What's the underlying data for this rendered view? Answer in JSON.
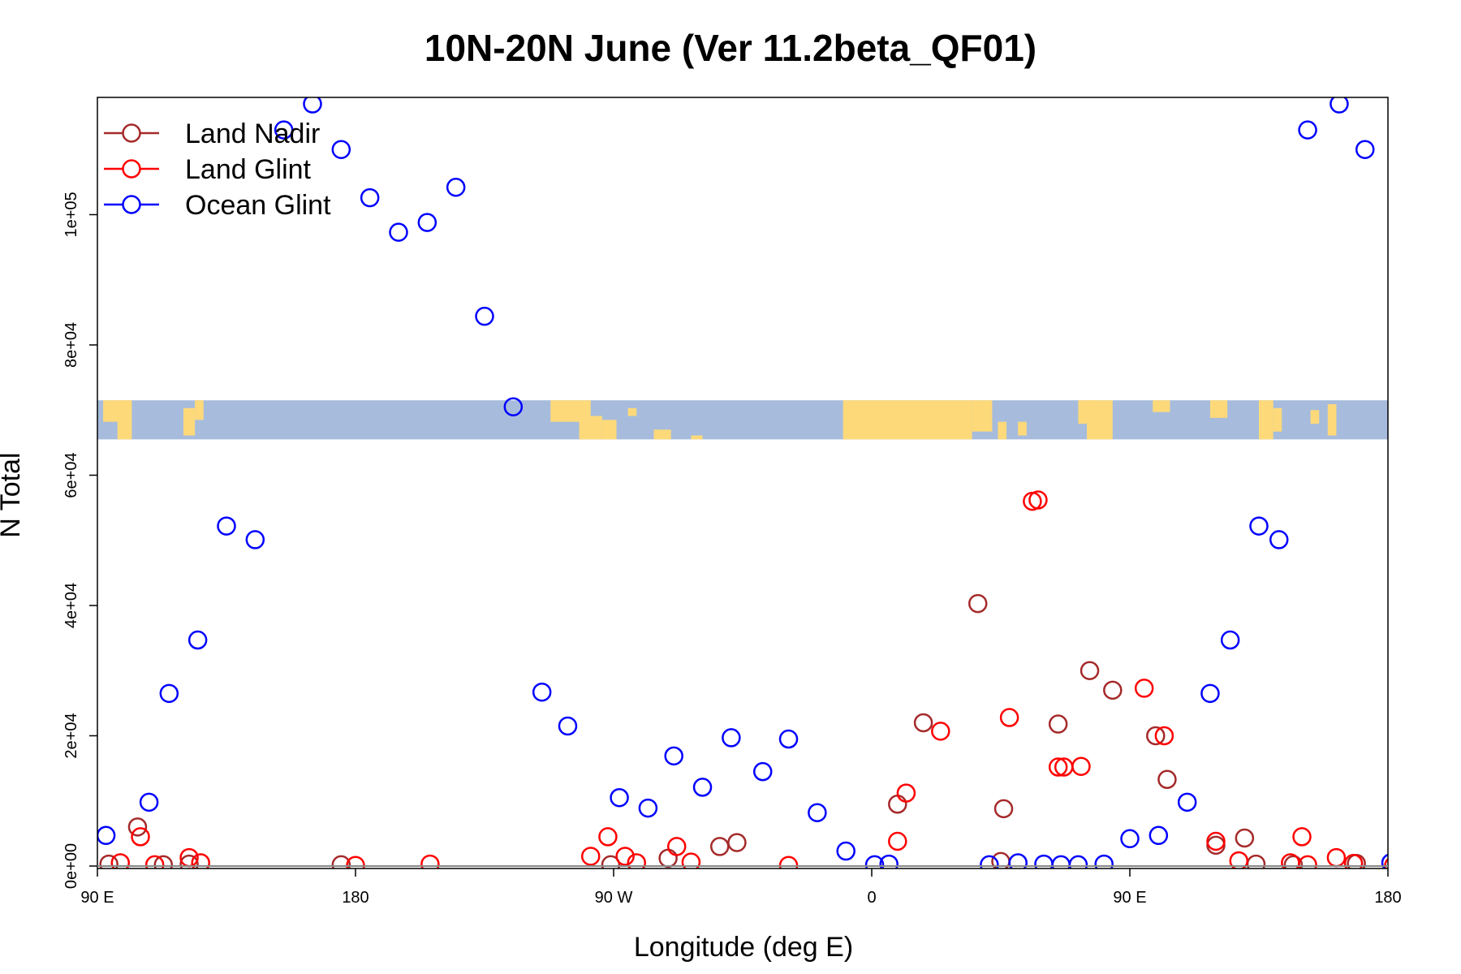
{
  "chart_data": {
    "type": "scatter",
    "title": "10N-20N June (Ver 11.2beta_QF01)",
    "xlabel": "Longitude (deg E)",
    "ylabel": "N Total",
    "xlim": [
      90,
      540
    ],
    "ylim": [
      0,
      118000
    ],
    "x_tick_values": [
      90,
      180,
      270,
      360,
      450,
      540
    ],
    "x_tick_labels": [
      "90 E",
      "180",
      "90 W",
      "0",
      "90 E",
      "180"
    ],
    "y_tick_values": [
      0,
      20000,
      40000,
      60000,
      80000,
      100000
    ],
    "y_tick_labels": [
      "0e+00",
      "2e+04",
      "4e+04",
      "6e+04",
      "8e+04",
      "1e+05"
    ],
    "grid": false,
    "legend_position": "top-left",
    "map_strip": {
      "y_range": [
        65500,
        71500
      ],
      "ocean_color": "#a7bcdc",
      "land_color": "#fdd97a"
    },
    "series": [
      {
        "name": "Land Nadir",
        "color": "#a52a2a",
        "x": [
          94,
          104,
          113,
          122,
          175,
          269,
          289,
          307,
          313,
          406,
          425,
          405,
          444,
          436,
          459,
          463,
          369,
          378,
          397,
          490,
          494,
          480,
          507,
          529
        ],
        "y": [
          300,
          6000,
          200,
          300,
          200,
          200,
          1200,
          3000,
          3600,
          8800,
          21800,
          700,
          27000,
          30000,
          20000,
          13300,
          9500,
          22000,
          40300,
          4300,
          300,
          3200,
          200,
          400
        ]
      },
      {
        "name": "Land Glint",
        "color": "#ff0000",
        "x": [
          98,
          105,
          110,
          122,
          126,
          180,
          206,
          262,
          268,
          274,
          278,
          292,
          297,
          331,
          369,
          372,
          384,
          408,
          416,
          418,
          425,
          427,
          433,
          455,
          462,
          480,
          488,
          506,
          510,
          512,
          522,
          528,
          542
        ],
        "y": [
          500,
          4500,
          200,
          1300,
          500,
          100,
          300,
          1500,
          4500,
          1500,
          500,
          3000,
          600,
          100,
          3800,
          11200,
          20700,
          22800,
          56000,
          56200,
          15200,
          15200,
          15300,
          27300,
          20000,
          3800,
          800,
          500,
          4500,
          200,
          1300,
          400,
          100
        ],
        "_note": "approximate markers"
      },
      {
        "name": "Ocean Glint",
        "color": "#0000ff",
        "x": [
          93,
          108,
          115,
          125,
          135,
          145,
          155,
          165,
          175,
          185,
          195,
          205,
          215,
          225,
          235,
          245,
          254,
          272,
          282,
          291,
          301,
          311,
          322,
          331,
          341,
          351,
          361,
          366,
          401,
          411,
          420,
          426,
          432,
          441,
          450,
          460,
          470,
          478,
          485,
          495,
          502,
          512,
          523,
          532,
          541
        ],
        "y": [
          4700,
          9800,
          26500,
          34700,
          52200,
          50100,
          113000,
          117000,
          110000,
          102600,
          97300,
          98800,
          104200,
          84400,
          70500,
          26700,
          21500,
          10500,
          8900,
          16900,
          12100,
          19700,
          14500,
          19500,
          8200,
          2300,
          200,
          300,
          200,
          500,
          300,
          200,
          200,
          300,
          4200,
          4700,
          9800,
          26500,
          34700,
          52200,
          50100,
          113000,
          117000,
          110000,
          500
        ]
      }
    ]
  }
}
